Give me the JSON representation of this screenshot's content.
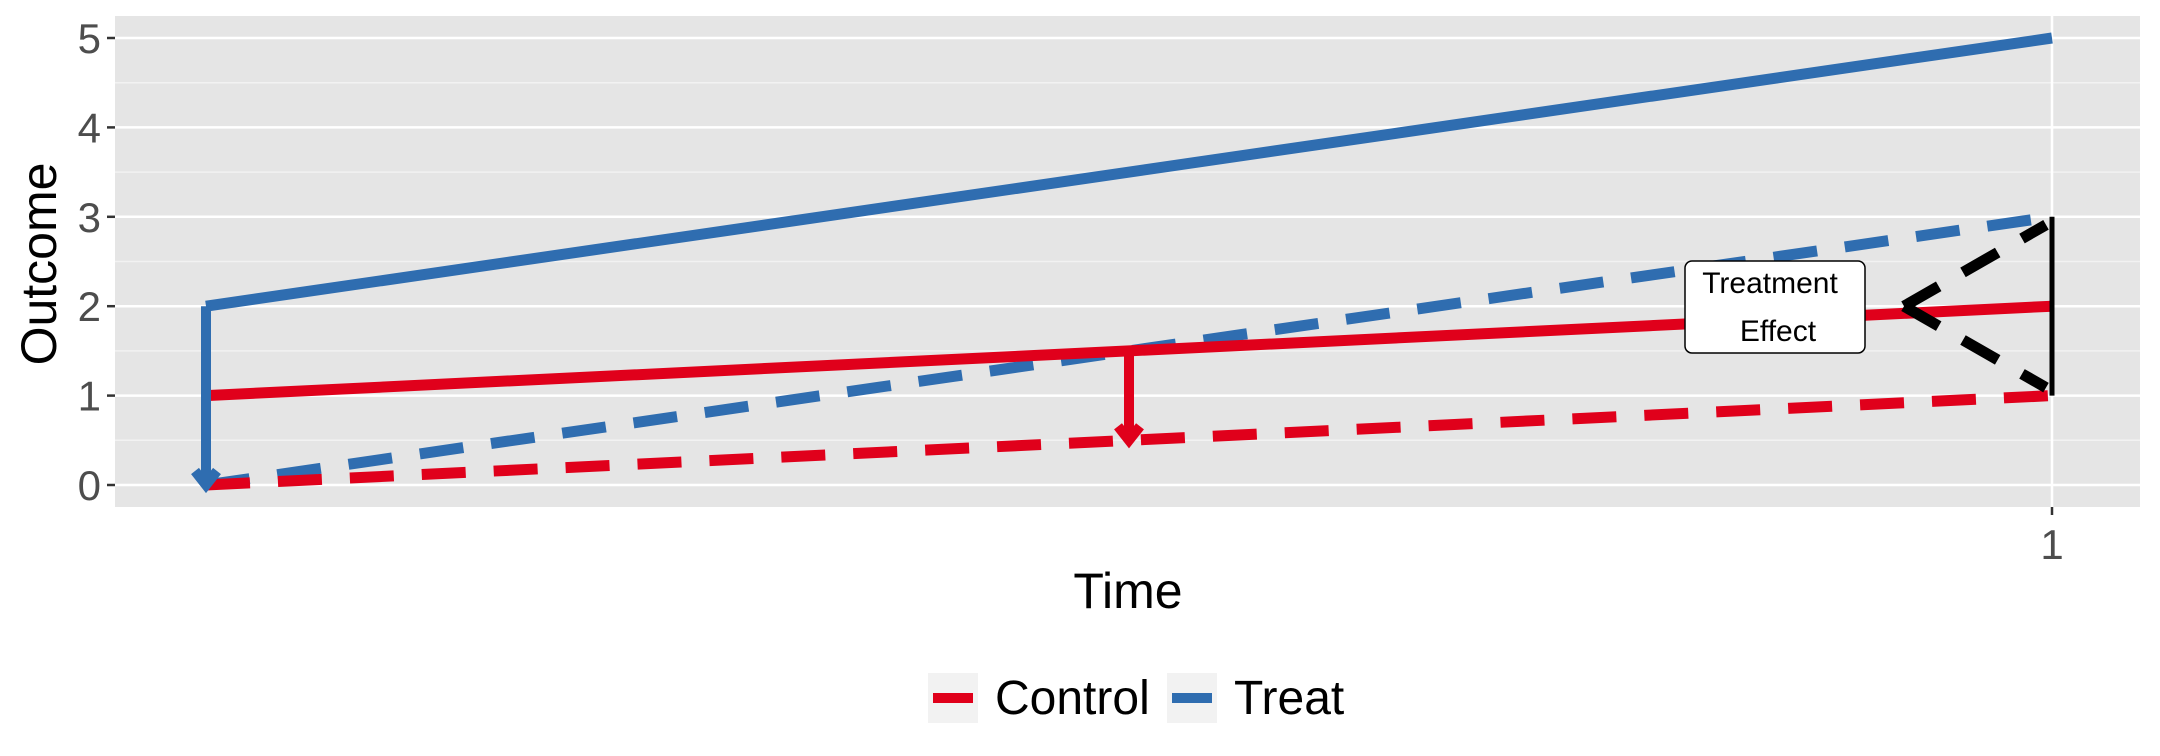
{
  "chart_data": {
    "type": "line",
    "xlabel": "Time",
    "ylabel": "Outcome",
    "x_ticks": [
      {
        "value": 1,
        "label": "1"
      }
    ],
    "y_ticks": [
      0,
      1,
      2,
      3,
      4,
      5
    ],
    "xlim": [
      -0.05,
      1.05
    ],
    "ylim": [
      -0.25,
      5.25
    ],
    "grid": true,
    "legend_position": "bottom",
    "series": [
      {
        "name": "Treat",
        "linetype": "solid",
        "color": "#2F6DB0",
        "points": [
          [
            0,
            2
          ],
          [
            1,
            5
          ]
        ]
      },
      {
        "name": "Treat",
        "linetype": "dashed",
        "color": "#2F6DB0",
        "points": [
          [
            0,
            0
          ],
          [
            1,
            3
          ]
        ]
      },
      {
        "name": "Control",
        "linetype": "solid",
        "color": "#E0001B",
        "points": [
          [
            0,
            1
          ],
          [
            1,
            2
          ]
        ]
      },
      {
        "name": "Control",
        "linetype": "dashed",
        "color": "#E0001B",
        "points": [
          [
            0,
            0
          ],
          [
            1,
            1
          ]
        ]
      }
    ],
    "arrows": [
      {
        "color": "#2F6DB0",
        "from": [
          0,
          2
        ],
        "to": [
          0,
          0
        ]
      },
      {
        "color": "#E0001B",
        "from": [
          0.5,
          1.5
        ],
        "to": [
          0.5,
          0.5
        ]
      }
    ],
    "effect_bracket": {
      "x": 1,
      "y_from": 1,
      "y_to": 3
    },
    "annotation": {
      "lines": [
        "Treatment",
        "Effect"
      ],
      "x": 0.85,
      "y": 2
    },
    "legend": [
      {
        "label": "Control",
        "color": "#E0001B"
      },
      {
        "label": "Treat",
        "color": "#2F6DB0"
      }
    ]
  }
}
